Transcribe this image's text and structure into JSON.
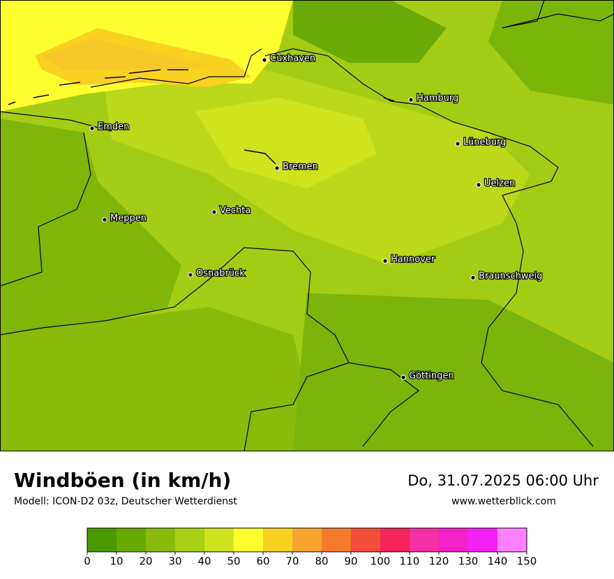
{
  "map": {
    "title": "Windböen (in km/h)",
    "subtitle": "Modell: ICON-D2 03z, Deutscher Wetterdienst",
    "datetime": "Do, 31.07.2025 06:00 Uhr",
    "website": "www.wetterblick.com",
    "cities": [
      "Cuxhaven",
      "Hamburg",
      "Emden",
      "Lüneburg",
      "Bremen",
      "Uelzen",
      "Vechta",
      "Meppen",
      "Hannover",
      "Osnabrück",
      "Braunschweig",
      "Göttingen"
    ]
  },
  "colorbar": {
    "ticks": [
      0,
      10,
      20,
      30,
      40,
      50,
      60,
      70,
      80,
      90,
      100,
      110,
      120,
      130,
      140,
      150
    ],
    "colors": [
      "#4a9900",
      "#66aa00",
      "#88bb0c",
      "#a8cf14",
      "#cde41e",
      "#ffff30",
      "#f9d221",
      "#f6a42c",
      "#f57a2c",
      "#f44d3c",
      "#f4245a",
      "#f42fa4",
      "#f420cc",
      "#f520f5",
      "#ff80ff"
    ]
  }
}
